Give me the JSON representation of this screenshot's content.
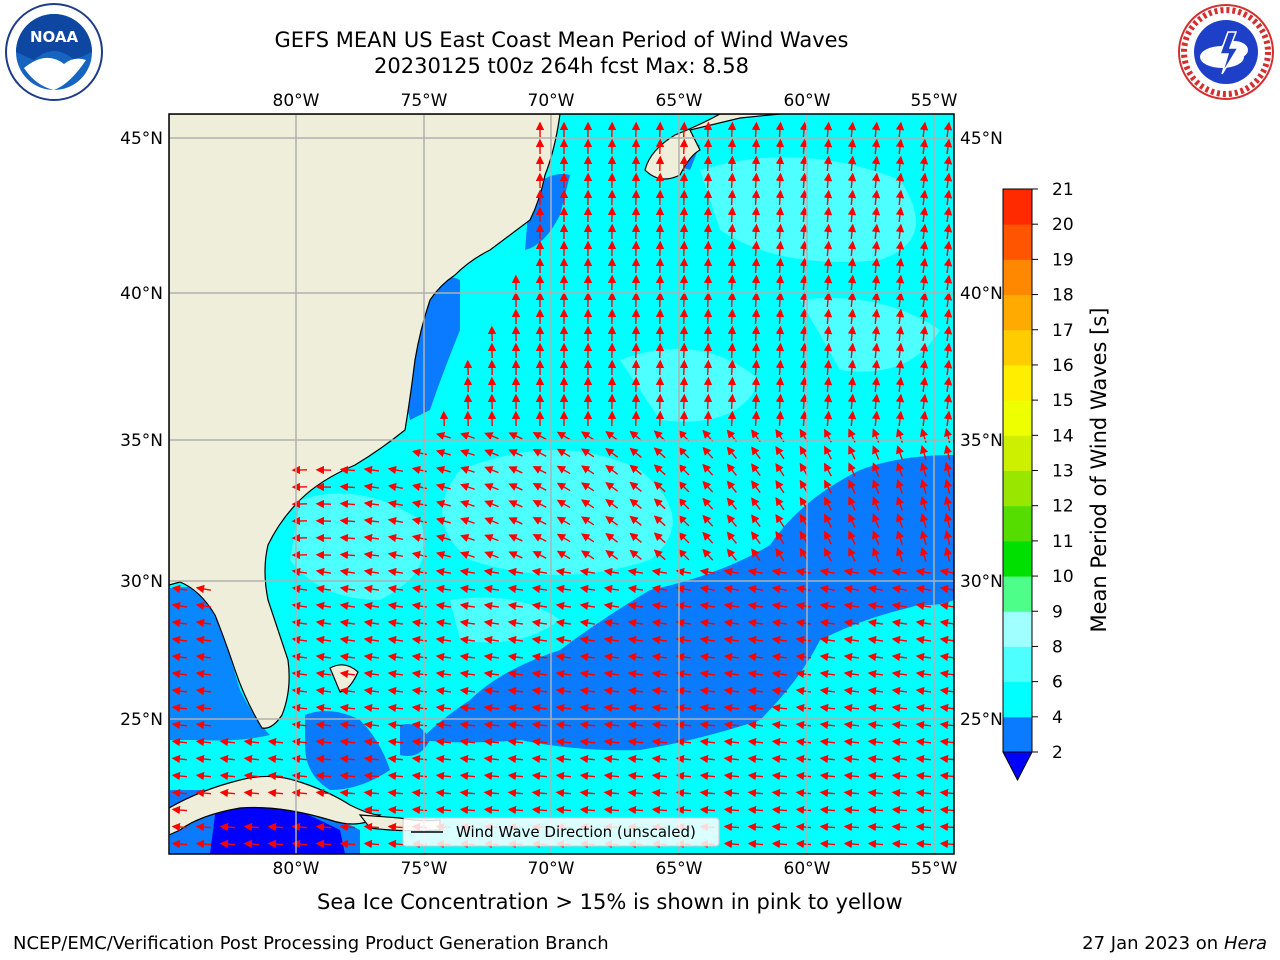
{
  "header": {
    "title_line1": "GEFS MEAN US East Coast Mean Period of Wind Waves",
    "title_line2": "20230125 t00z 264h fcst   Max: 8.58"
  },
  "logos": {
    "left": "noaa",
    "right": "national-weather-service"
  },
  "map": {
    "lon_labels": [
      "80°W",
      "75°W",
      "70°W",
      "65°W",
      "60°W",
      "55°W"
    ],
    "lat_labels": [
      "45°N",
      "40°N",
      "35°N",
      "30°N",
      "25°N"
    ],
    "legend_label": "Wind Wave Direction (unscaled)",
    "colors": {
      "land": "#efeedb",
      "ocean_4_6": "#00ffff",
      "ocean_6_8": "#4dffff",
      "ocean_2_4": "#0a7aff",
      "ocean_lt2": "#0000ff",
      "arrow": "#ff0000",
      "grid": "#b0b0b0"
    }
  },
  "colorbar": {
    "label": "Mean Period of Wind Waves [s]",
    "ticks": [
      "2",
      "4",
      "6",
      "8",
      "9",
      "10",
      "11",
      "12",
      "13",
      "14",
      "15",
      "16",
      "17",
      "18",
      "19",
      "20",
      "21"
    ],
    "colors": [
      "#0a7aff",
      "#00ffff",
      "#4dffff",
      "#a0ffff",
      "#4dff88",
      "#00e000",
      "#55dd00",
      "#99e600",
      "#ccf000",
      "#eeff00",
      "#ffee00",
      "#ffcc00",
      "#ffaa00",
      "#ff8800",
      "#ff5500",
      "#ff2a00"
    ],
    "extend_color": "#0000ff"
  },
  "footer": {
    "caption": "Sea Ice Concentration > 15% is shown in pink to yellow",
    "credit": "NCEP/EMC/Verification Post Processing Product Generation Branch",
    "date": "27 Jan 2023 on",
    "machine": "Hera"
  }
}
